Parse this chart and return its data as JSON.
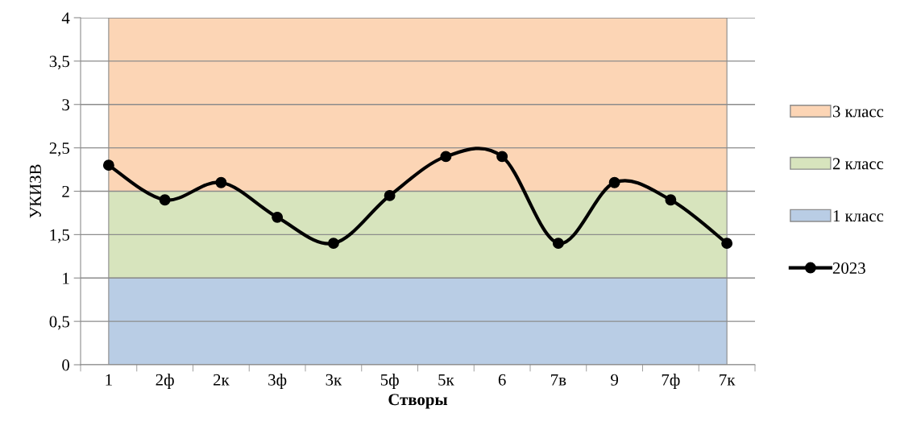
{
  "chart_data": {
    "type": "area",
    "xlabel": "Створы",
    "ylabel": "УКИЗВ",
    "categories": [
      "1",
      "2ф",
      "2к",
      "3ф",
      "3к",
      "5ф",
      "5к",
      "6",
      "7в",
      "9",
      "7ф",
      "7к"
    ],
    "stacked": true,
    "series": [
      {
        "name": "1 класс",
        "color": "#b9cde5",
        "values": [
          1,
          1,
          1,
          1,
          1,
          1,
          1,
          1,
          1,
          1,
          1,
          1
        ]
      },
      {
        "name": "2 класс",
        "color": "#d7e4bd",
        "values": [
          1,
          1,
          1,
          1,
          1,
          1,
          1,
          1,
          1,
          1,
          1,
          1
        ]
      },
      {
        "name": "3 класс",
        "color": "#fcd5b5",
        "values": [
          2,
          2,
          2,
          2,
          2,
          2,
          2,
          2,
          2,
          2,
          2,
          2
        ]
      },
      {
        "name": "2023",
        "type": "line",
        "color": "#000000",
        "marker": "circle",
        "line_style": "solid",
        "values": [
          2.3,
          1.9,
          2.1,
          1.7,
          1.4,
          1.95,
          2.4,
          2.4,
          1.4,
          2.1,
          1.9,
          1.4
        ]
      }
    ],
    "ylim": [
      0,
      4
    ],
    "yticks": [
      0,
      {
        "value": 0.5,
        "label": "0,5"
      },
      1,
      {
        "value": 1.5,
        "label": "1,5"
      },
      2,
      {
        "value": 2.5,
        "label": "2,5"
      },
      3,
      {
        "value": 3.5,
        "label": "3,5"
      },
      4
    ],
    "grid": "y",
    "legend": "right"
  }
}
